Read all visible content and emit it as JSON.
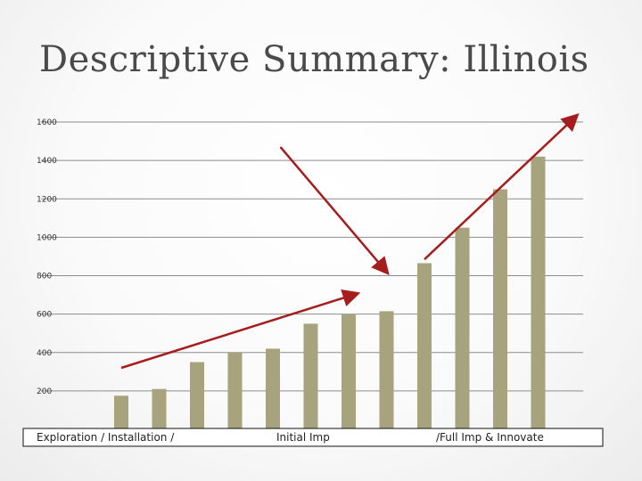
{
  "slide": {
    "title": "Descriptive Summary: Illinois"
  },
  "chart_data": {
    "type": "bar",
    "title": "",
    "xlabel": "",
    "ylabel": "",
    "ylim": [
      0,
      1600
    ],
    "yticks": [
      200,
      400,
      600,
      800,
      1000,
      1200,
      1400,
      1600
    ],
    "grid": true,
    "legend": "none",
    "series": [
      {
        "values": [
          175,
          210,
          350,
          400,
          420,
          550,
          600,
          615,
          865,
          1050,
          1250,
          1420
        ]
      }
    ],
    "x_category_labels": [
      "Exploration / Installation  /",
      "Initial Imp",
      "/Full Imp & Innovate"
    ],
    "annotations": [
      {
        "type": "arrow",
        "from": {
          "bar": 1,
          "value": 320
        },
        "to": {
          "bar": 7.2,
          "value": 705
        }
      },
      {
        "type": "arrow",
        "from": {
          "bar": 5.2,
          "value": 1470
        },
        "to": {
          "bar": 8.0,
          "value": 820
        }
      },
      {
        "type": "arrow",
        "from": {
          "bar": 9.0,
          "value": 885
        },
        "to": {
          "bar": 13.0,
          "value": 1630
        }
      }
    ],
    "colors": {
      "bar": "#a7a37c",
      "arrow": "#a51d1d",
      "grid": "#8c8c8c"
    }
  }
}
